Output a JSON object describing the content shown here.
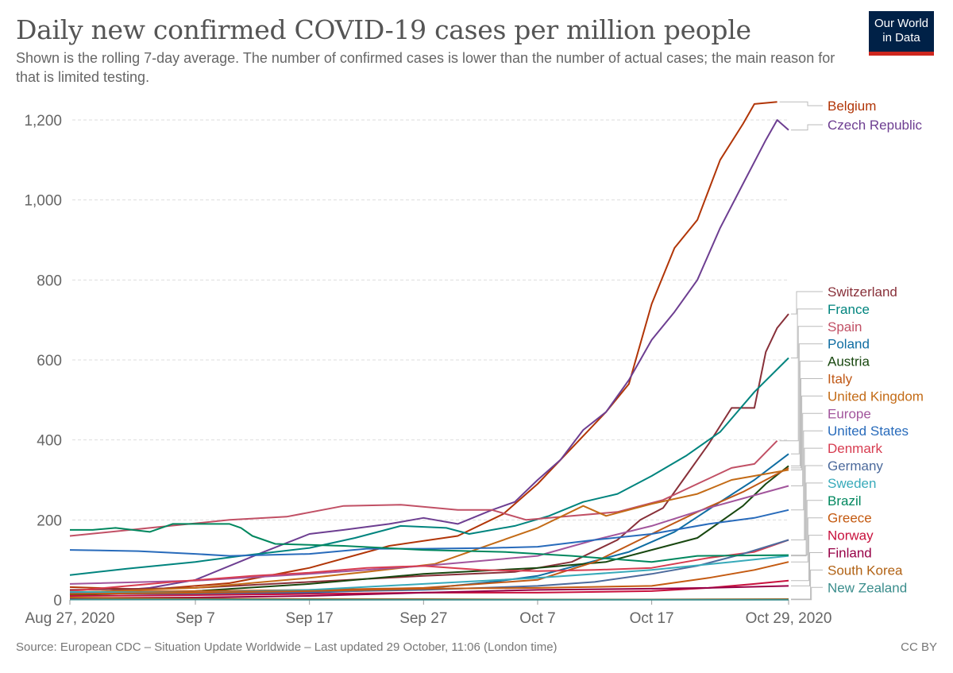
{
  "title": "Daily new confirmed COVID-19 cases per million people",
  "subtitle": "Shown is the rolling 7-day average. The number of confirmed cases is lower than the number of actual cases; the main reason for that is limited testing.",
  "logo": {
    "line1": "Our World",
    "line2": "in Data",
    "bg": "#002147",
    "accent": "#ce261e"
  },
  "source": "Source: European CDC – Situation Update Worldwide – Last updated 29 October, 11:06 (London time)",
  "license": "CC BY",
  "chart_data": {
    "type": "line",
    "title": "Daily new confirmed COVID-19 cases per million people",
    "xlabel": "",
    "ylabel": "",
    "ylim": [
      0,
      1250
    ],
    "yticks": [
      0,
      200,
      400,
      600,
      800,
      1000,
      1200
    ],
    "ytick_labels": [
      "0",
      "200",
      "400",
      "600",
      "800",
      "1,000",
      "1,200"
    ],
    "xticks": [
      "2020-08-27",
      "2020-09-07",
      "2020-09-17",
      "2020-09-27",
      "2020-10-07",
      "2020-10-17",
      "2020-10-29"
    ],
    "xtick_labels": [
      "Aug 27, 2020",
      "Sep 7",
      "Sep 17",
      "Sep 27",
      "Oct 7",
      "Oct 17",
      "Oct 29, 2020"
    ],
    "x_range": [
      "2020-08-27",
      "2020-10-29"
    ],
    "grid": "horizontal dashed",
    "legend": "right",
    "series": [
      {
        "name": "Belgium",
        "color": "#b13507",
        "points": [
          [
            "2020-08-27",
            32
          ],
          [
            "2020-09-03",
            26
          ],
          [
            "2020-09-10",
            42
          ],
          [
            "2020-09-17",
            80
          ],
          [
            "2020-09-24",
            135
          ],
          [
            "2020-09-30",
            160
          ],
          [
            "2020-10-04",
            215
          ],
          [
            "2020-10-07",
            290
          ],
          [
            "2020-10-10",
            380
          ],
          [
            "2020-10-13",
            470
          ],
          [
            "2020-10-15",
            540
          ],
          [
            "2020-10-17",
            740
          ],
          [
            "2020-10-19",
            880
          ],
          [
            "2020-10-21",
            950
          ],
          [
            "2020-10-23",
            1100
          ],
          [
            "2020-10-25",
            1190
          ],
          [
            "2020-10-26",
            1240
          ],
          [
            "2020-10-28",
            1245
          ]
        ]
      },
      {
        "name": "Czech Republic",
        "color": "#6d3e91",
        "points": [
          [
            "2020-08-27",
            14
          ],
          [
            "2020-09-03",
            30
          ],
          [
            "2020-09-07",
            50
          ],
          [
            "2020-09-13",
            120
          ],
          [
            "2020-09-17",
            165
          ],
          [
            "2020-09-20",
            175
          ],
          [
            "2020-09-24",
            190
          ],
          [
            "2020-09-27",
            205
          ],
          [
            "2020-09-30",
            190
          ],
          [
            "2020-10-03",
            225
          ],
          [
            "2020-10-05",
            245
          ],
          [
            "2020-10-07",
            300
          ],
          [
            "2020-10-09",
            350
          ],
          [
            "2020-10-11",
            425
          ],
          [
            "2020-10-13",
            470
          ],
          [
            "2020-10-15",
            550
          ],
          [
            "2020-10-17",
            650
          ],
          [
            "2020-10-19",
            720
          ],
          [
            "2020-10-21",
            800
          ],
          [
            "2020-10-23",
            930
          ],
          [
            "2020-10-25",
            1040
          ],
          [
            "2020-10-27",
            1150
          ],
          [
            "2020-10-28",
            1200
          ],
          [
            "2020-10-29",
            1175
          ]
        ]
      },
      {
        "name": "Switzerland",
        "color": "#883039",
        "points": [
          [
            "2020-08-27",
            25
          ],
          [
            "2020-09-07",
            30
          ],
          [
            "2020-09-17",
            45
          ],
          [
            "2020-09-27",
            60
          ],
          [
            "2020-10-05",
            70
          ],
          [
            "2020-10-10",
            95
          ],
          [
            "2020-10-14",
            150
          ],
          [
            "2020-10-16",
            200
          ],
          [
            "2020-10-18",
            230
          ],
          [
            "2020-10-20",
            310
          ],
          [
            "2020-10-22",
            390
          ],
          [
            "2020-10-24",
            480
          ],
          [
            "2020-10-26",
            480
          ],
          [
            "2020-10-27",
            620
          ],
          [
            "2020-10-28",
            680
          ],
          [
            "2020-10-29",
            715
          ]
        ]
      },
      {
        "name": "France",
        "color": "#00847e",
        "points": [
          [
            "2020-08-27",
            62
          ],
          [
            "2020-09-01",
            78
          ],
          [
            "2020-09-07",
            95
          ],
          [
            "2020-09-11",
            110
          ],
          [
            "2020-09-17",
            130
          ],
          [
            "2020-09-21",
            155
          ],
          [
            "2020-09-25",
            185
          ],
          [
            "2020-09-29",
            180
          ],
          [
            "2020-10-01",
            165
          ],
          [
            "2020-10-05",
            185
          ],
          [
            "2020-10-08",
            210
          ],
          [
            "2020-10-11",
            245
          ],
          [
            "2020-10-14",
            265
          ],
          [
            "2020-10-17",
            310
          ],
          [
            "2020-10-20",
            360
          ],
          [
            "2020-10-23",
            420
          ],
          [
            "2020-10-26",
            520
          ],
          [
            "2020-10-29",
            605
          ]
        ]
      },
      {
        "name": "Spain",
        "color": "#c15065",
        "points": [
          [
            "2020-08-27",
            160
          ],
          [
            "2020-09-03",
            180
          ],
          [
            "2020-09-10",
            200
          ],
          [
            "2020-09-15",
            208
          ],
          [
            "2020-09-20",
            235
          ],
          [
            "2020-09-25",
            238
          ],
          [
            "2020-09-30",
            225
          ],
          [
            "2020-10-03",
            225
          ],
          [
            "2020-10-06",
            200
          ],
          [
            "2020-10-10",
            210
          ],
          [
            "2020-10-14",
            220
          ],
          [
            "2020-10-18",
            250
          ],
          [
            "2020-10-21",
            290
          ],
          [
            "2020-10-24",
            330
          ],
          [
            "2020-10-26",
            340
          ],
          [
            "2020-10-28",
            398
          ]
        ]
      },
      {
        "name": "Poland",
        "color": "#0f6da2",
        "points": [
          [
            "2020-08-27",
            16
          ],
          [
            "2020-09-07",
            15
          ],
          [
            "2020-09-17",
            18
          ],
          [
            "2020-09-27",
            28
          ],
          [
            "2020-10-03",
            45
          ],
          [
            "2020-10-07",
            60
          ],
          [
            "2020-10-11",
            90
          ],
          [
            "2020-10-15",
            120
          ],
          [
            "2020-10-19",
            170
          ],
          [
            "2020-10-23",
            245
          ],
          [
            "2020-10-26",
            300
          ],
          [
            "2020-10-29",
            365
          ]
        ]
      },
      {
        "name": "Austria",
        "color": "#18470f",
        "points": [
          [
            "2020-08-27",
            12
          ],
          [
            "2020-09-07",
            22
          ],
          [
            "2020-09-17",
            40
          ],
          [
            "2020-09-27",
            65
          ],
          [
            "2020-10-07",
            80
          ],
          [
            "2020-10-13",
            95
          ],
          [
            "2020-10-17",
            125
          ],
          [
            "2020-10-21",
            155
          ],
          [
            "2020-10-25",
            235
          ],
          [
            "2020-10-27",
            290
          ],
          [
            "2020-10-29",
            335
          ]
        ]
      },
      {
        "name": "Italy",
        "color": "#c05917",
        "points": [
          [
            "2020-08-27",
            20
          ],
          [
            "2020-09-07",
            22
          ],
          [
            "2020-09-17",
            25
          ],
          [
            "2020-09-27",
            30
          ],
          [
            "2020-10-07",
            50
          ],
          [
            "2020-10-12",
            95
          ],
          [
            "2020-10-17",
            165
          ],
          [
            "2020-10-21",
            220
          ],
          [
            "2020-10-25",
            270
          ],
          [
            "2020-10-29",
            330
          ]
        ]
      },
      {
        "name": "United Kingdom",
        "color": "#c36b16",
        "points": [
          [
            "2020-08-27",
            18
          ],
          [
            "2020-09-07",
            30
          ],
          [
            "2020-09-17",
            55
          ],
          [
            "2020-09-22",
            70
          ],
          [
            "2020-09-28",
            90
          ],
          [
            "2020-10-02",
            130
          ],
          [
            "2020-10-07",
            180
          ],
          [
            "2020-10-11",
            235
          ],
          [
            "2020-10-13",
            210
          ],
          [
            "2020-10-17",
            240
          ],
          [
            "2020-10-21",
            265
          ],
          [
            "2020-10-24",
            300
          ],
          [
            "2020-10-29",
            325
          ]
        ]
      },
      {
        "name": "Europe",
        "color": "#a2559c",
        "points": [
          [
            "2020-08-27",
            40
          ],
          [
            "2020-09-07",
            48
          ],
          [
            "2020-09-17",
            65
          ],
          [
            "2020-09-27",
            85
          ],
          [
            "2020-10-07",
            110
          ],
          [
            "2020-10-12",
            150
          ],
          [
            "2020-10-17",
            185
          ],
          [
            "2020-10-22",
            230
          ],
          [
            "2020-10-29",
            285
          ]
        ]
      },
      {
        "name": "United States",
        "color": "#286bbb",
        "points": [
          [
            "2020-08-27",
            125
          ],
          [
            "2020-09-02",
            122
          ],
          [
            "2020-09-07",
            115
          ],
          [
            "2020-09-10",
            110
          ],
          [
            "2020-09-17",
            115
          ],
          [
            "2020-09-22",
            128
          ],
          [
            "2020-09-27",
            128
          ],
          [
            "2020-10-03",
            130
          ],
          [
            "2020-10-07",
            133
          ],
          [
            "2020-10-12",
            150
          ],
          [
            "2020-10-17",
            165
          ],
          [
            "2020-10-22",
            190
          ],
          [
            "2020-10-26",
            205
          ],
          [
            "2020-10-29",
            225
          ]
        ]
      },
      {
        "name": "Denmark",
        "color": "#d73c50",
        "points": [
          [
            "2020-08-27",
            22
          ],
          [
            "2020-09-05",
            45
          ],
          [
            "2020-09-12",
            60
          ],
          [
            "2020-09-17",
            68
          ],
          [
            "2020-09-22",
            80
          ],
          [
            "2020-09-27",
            85
          ],
          [
            "2020-10-02",
            75
          ],
          [
            "2020-10-07",
            72
          ],
          [
            "2020-10-12",
            75
          ],
          [
            "2020-10-17",
            80
          ],
          [
            "2020-10-22",
            105
          ],
          [
            "2020-10-26",
            120
          ],
          [
            "2020-10-29",
            150
          ]
        ]
      },
      {
        "name": "Germany",
        "color": "#4c6a9c",
        "points": [
          [
            "2020-08-27",
            17
          ],
          [
            "2020-09-07",
            15
          ],
          [
            "2020-09-17",
            20
          ],
          [
            "2020-09-27",
            25
          ],
          [
            "2020-10-07",
            35
          ],
          [
            "2020-10-12",
            45
          ],
          [
            "2020-10-17",
            65
          ],
          [
            "2020-10-21",
            85
          ],
          [
            "2020-10-25",
            115
          ],
          [
            "2020-10-29",
            150
          ]
        ]
      },
      {
        "name": "Sweden",
        "color": "#38aaba",
        "points": [
          [
            "2020-08-27",
            20
          ],
          [
            "2020-09-07",
            18
          ],
          [
            "2020-09-17",
            25
          ],
          [
            "2020-09-27",
            40
          ],
          [
            "2020-10-07",
            55
          ],
          [
            "2020-10-17",
            75
          ],
          [
            "2020-10-24",
            95
          ],
          [
            "2020-10-29",
            110
          ]
        ]
      },
      {
        "name": "Brazil",
        "color": "#00875e",
        "points": [
          [
            "2020-08-27",
            175
          ],
          [
            "2020-08-29",
            175
          ],
          [
            "2020-08-31",
            180
          ],
          [
            "2020-09-03",
            170
          ],
          [
            "2020-09-05",
            190
          ],
          [
            "2020-09-10",
            190
          ],
          [
            "2020-09-11",
            180
          ],
          [
            "2020-09-12",
            160
          ],
          [
            "2020-09-14",
            140
          ],
          [
            "2020-09-20",
            135
          ],
          [
            "2020-09-27",
            125
          ],
          [
            "2020-10-04",
            120
          ],
          [
            "2020-10-10",
            110
          ],
          [
            "2020-10-17",
            95
          ],
          [
            "2020-10-21",
            110
          ],
          [
            "2020-10-29",
            112
          ]
        ]
      },
      {
        "name": "Greece",
        "color": "#c45a11",
        "points": [
          [
            "2020-08-27",
            15
          ],
          [
            "2020-09-07",
            18
          ],
          [
            "2020-09-17",
            22
          ],
          [
            "2020-09-27",
            28
          ],
          [
            "2020-10-07",
            30
          ],
          [
            "2020-10-17",
            35
          ],
          [
            "2020-10-22",
            55
          ],
          [
            "2020-10-26",
            75
          ],
          [
            "2020-10-29",
            95
          ]
        ]
      },
      {
        "name": "Norway",
        "color": "#c8113d",
        "points": [
          [
            "2020-08-27",
            10
          ],
          [
            "2020-09-07",
            12
          ],
          [
            "2020-09-17",
            15
          ],
          [
            "2020-09-27",
            18
          ],
          [
            "2020-10-07",
            18
          ],
          [
            "2020-10-17",
            22
          ],
          [
            "2020-10-22",
            30
          ],
          [
            "2020-10-26",
            40
          ],
          [
            "2020-10-29",
            48
          ]
        ]
      },
      {
        "name": "Finland",
        "color": "#970046",
        "points": [
          [
            "2020-08-27",
            5
          ],
          [
            "2020-09-07",
            6
          ],
          [
            "2020-09-17",
            10
          ],
          [
            "2020-09-27",
            18
          ],
          [
            "2020-10-07",
            25
          ],
          [
            "2020-10-17",
            28
          ],
          [
            "2020-10-22",
            30
          ],
          [
            "2020-10-29",
            35
          ]
        ]
      },
      {
        "name": "South Korea",
        "color": "#b16214",
        "points": [
          [
            "2020-08-27",
            6
          ],
          [
            "2020-09-07",
            3
          ],
          [
            "2020-09-17",
            2
          ],
          [
            "2020-09-27",
            2
          ],
          [
            "2020-10-07",
            1
          ],
          [
            "2020-10-17",
            1
          ],
          [
            "2020-10-29",
            2
          ]
        ]
      },
      {
        "name": "New Zealand",
        "color": "#3a8d8c",
        "points": [
          [
            "2020-08-27",
            1
          ],
          [
            "2020-09-07",
            1
          ],
          [
            "2020-09-17",
            0.5
          ],
          [
            "2020-09-27",
            0.5
          ],
          [
            "2020-10-07",
            0.3
          ],
          [
            "2020-10-17",
            0.5
          ],
          [
            "2020-10-29",
            0.5
          ]
        ]
      }
    ]
  }
}
